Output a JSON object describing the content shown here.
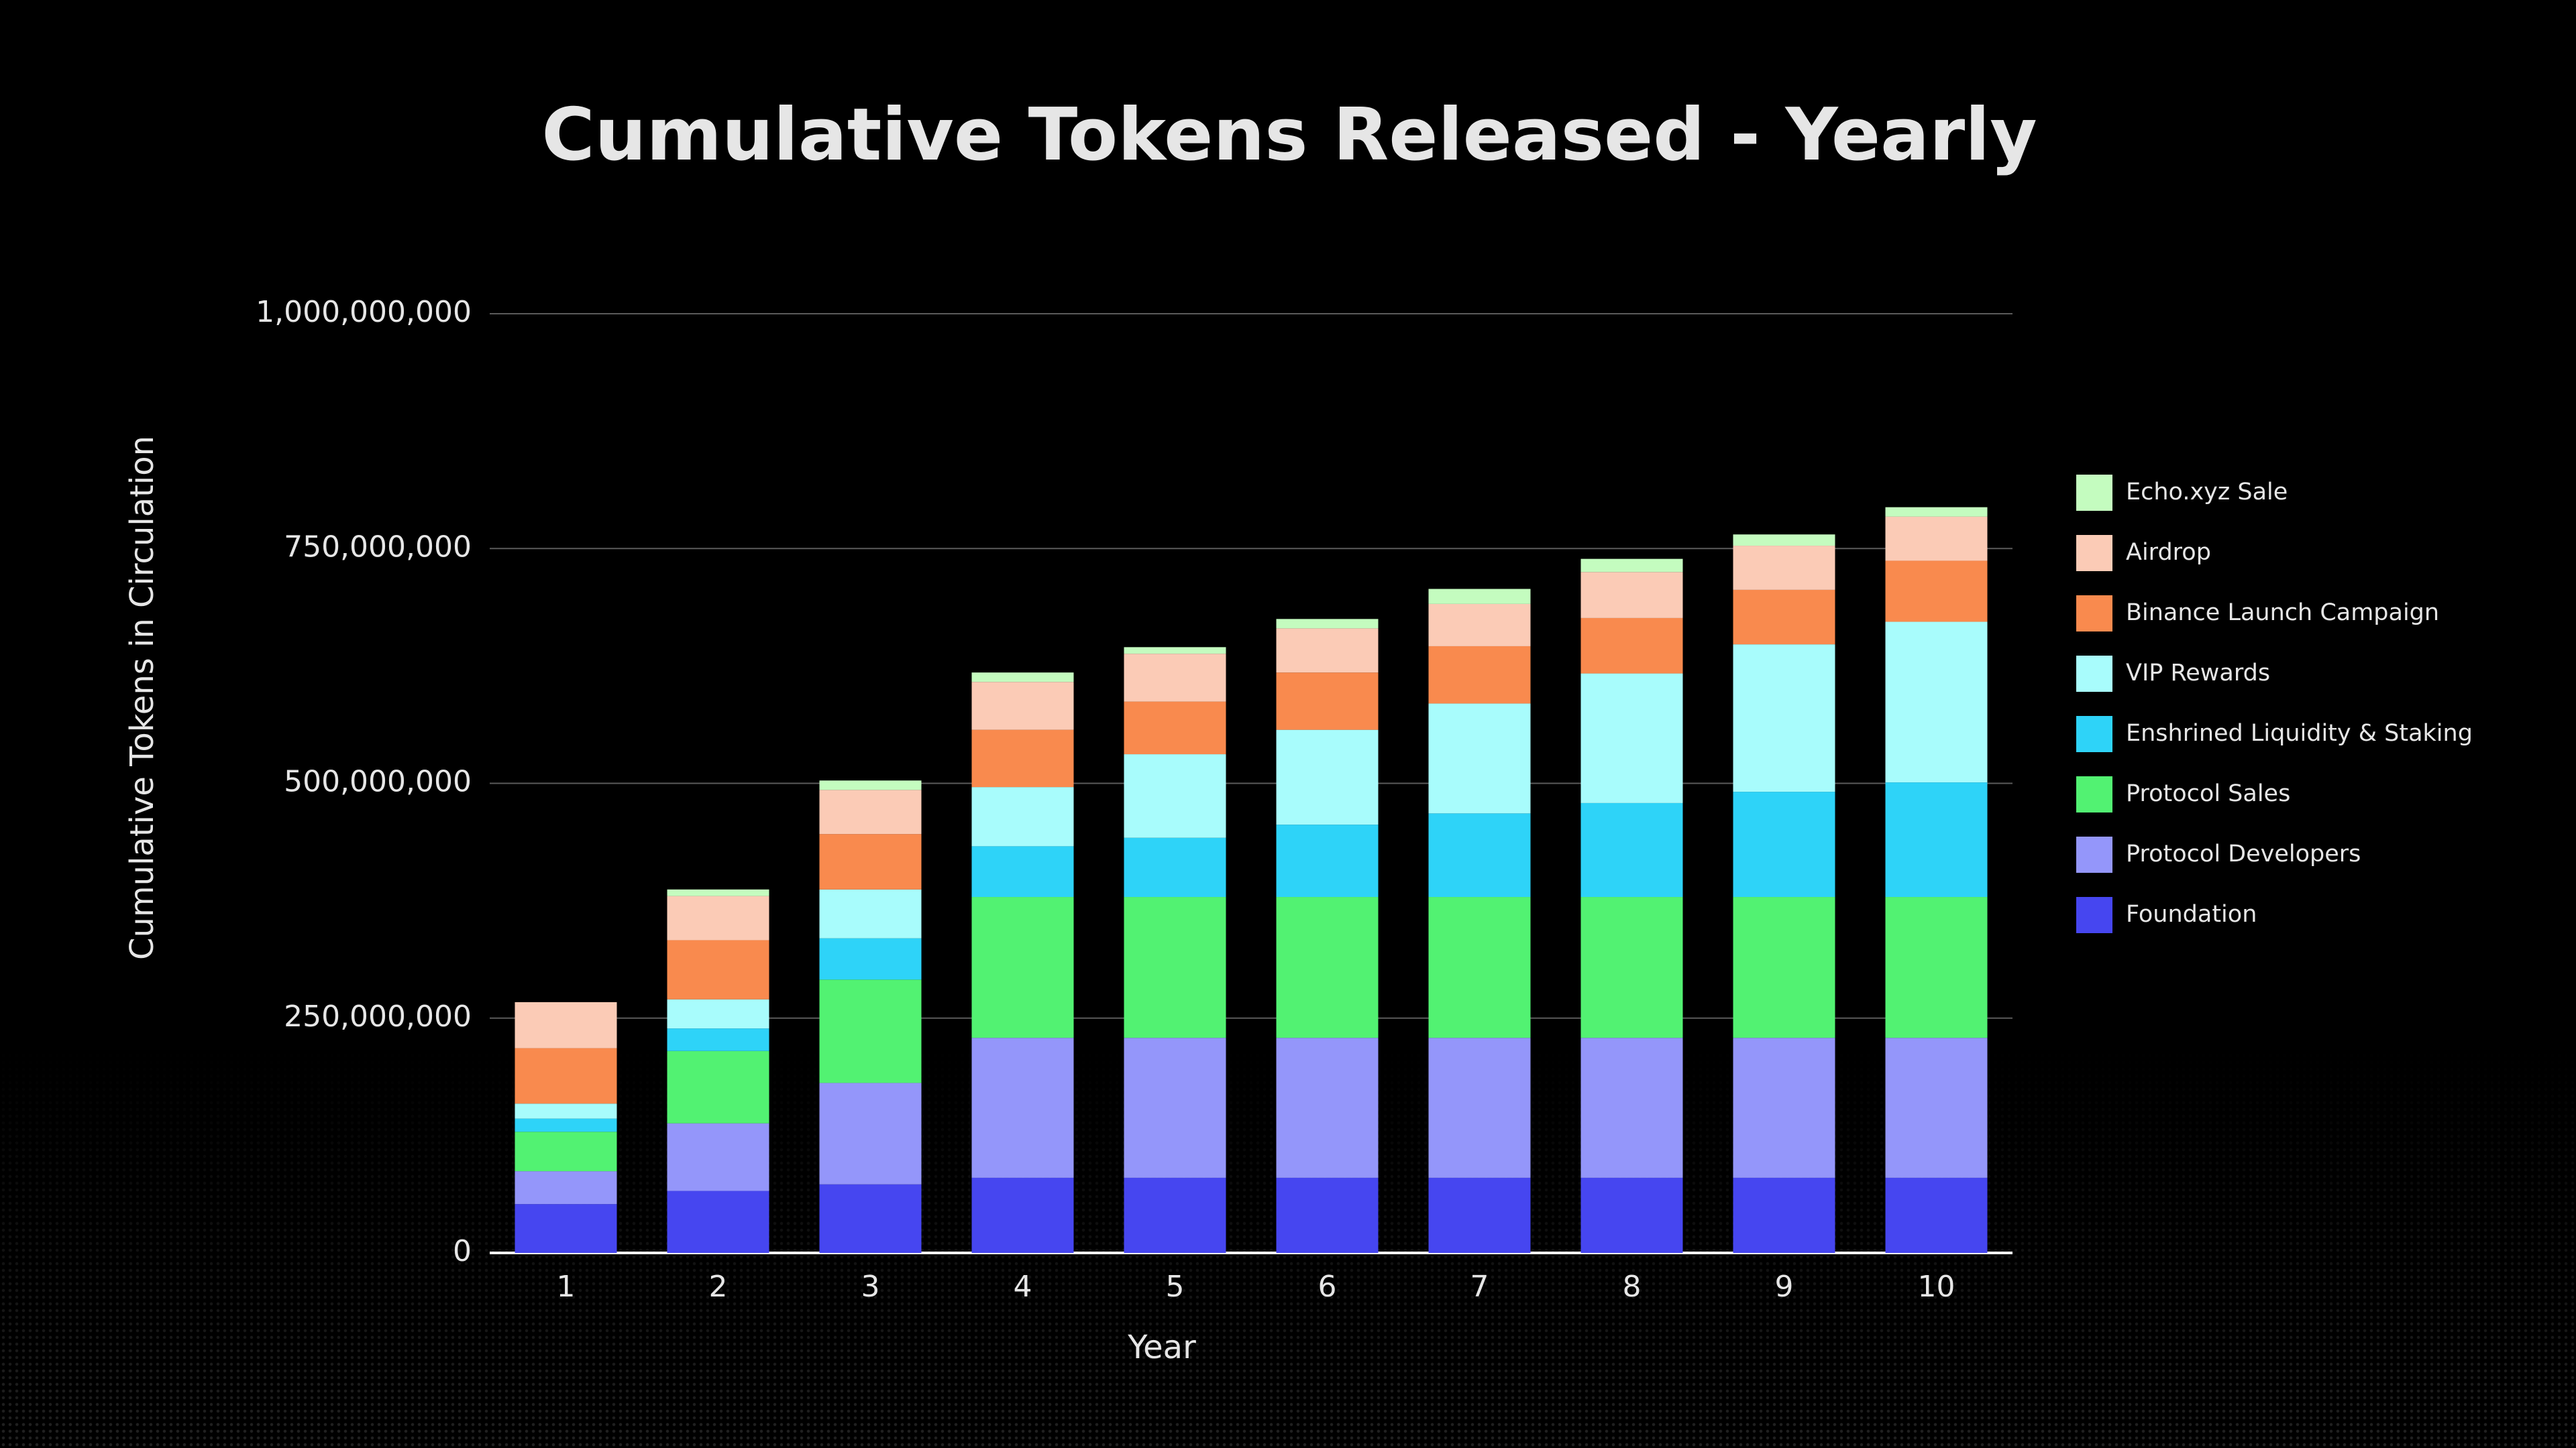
{
  "chart_data": {
    "type": "stacked_bar",
    "title": "Cumulative Tokens Released - Yearly",
    "x_label": "Year",
    "y_label": "Cumulative Tokens in Circulation",
    "categories": [
      "1",
      "2",
      "3",
      "4",
      "5",
      "6",
      "7",
      "8",
      "9",
      "10"
    ],
    "series": [
      {
        "name": "Foundation",
        "color": "#4646f0",
        "values": [
          52000000,
          66000000,
          73000000,
          80000000,
          80000000,
          80000000,
          80000000,
          80000000,
          80000000,
          80000000
        ]
      },
      {
        "name": "Protocol Developers",
        "color": "#9496fa",
        "values": [
          35000000,
          72000000,
          108000000,
          149000000,
          149000000,
          149000000,
          149000000,
          149000000,
          149000000,
          149000000
        ]
      },
      {
        "name": "Protocol Sales",
        "color": "#52f272",
        "values": [
          42000000,
          77000000,
          110000000,
          150000000,
          150000000,
          150000000,
          150000000,
          150000000,
          150000000,
          150000000
        ]
      },
      {
        "name": "Enshrined Liquidity & Staking",
        "color": "#2ed3f8",
        "values": [
          14000000,
          24000000,
          44000000,
          54000000,
          63000000,
          77000000,
          89000000,
          100000000,
          112000000,
          122000000
        ]
      },
      {
        "name": "VIP Rewards",
        "color": "#a8fcfc",
        "values": [
          16000000,
          31000000,
          52000000,
          63000000,
          89000000,
          101000000,
          117000000,
          138000000,
          157000000,
          171000000
        ]
      },
      {
        "name": "Binance Launch Campaign",
        "color": "#f98a4e",
        "values": [
          59000000,
          63000000,
          59000000,
          61000000,
          56000000,
          61000000,
          61000000,
          59000000,
          58000000,
          65000000
        ]
      },
      {
        "name": "Airdrop",
        "color": "#fbcbb6",
        "values": [
          49000000,
          47000000,
          47000000,
          51000000,
          51000000,
          47000000,
          45000000,
          49000000,
          47000000,
          47000000
        ]
      },
      {
        "name": "Echo.xyz Sale",
        "color": "#c4fcbf",
        "values": [
          0,
          7000000,
          10000000,
          10000000,
          7000000,
          10000000,
          16000000,
          14000000,
          12000000,
          10000000
        ]
      }
    ],
    "ylim": [
      0,
      1000000000
    ],
    "yticks": [
      0,
      {
        "value": 250000000,
        "label": "250,000,000"
      },
      {
        "value": 500000000,
        "label": "500,000,000"
      },
      {
        "value": 750000000,
        "label": "750,000,000"
      },
      {
        "value": 1000000000,
        "label": "1,000,000,000"
      }
    ],
    "grid": true,
    "legend_position": "right"
  }
}
